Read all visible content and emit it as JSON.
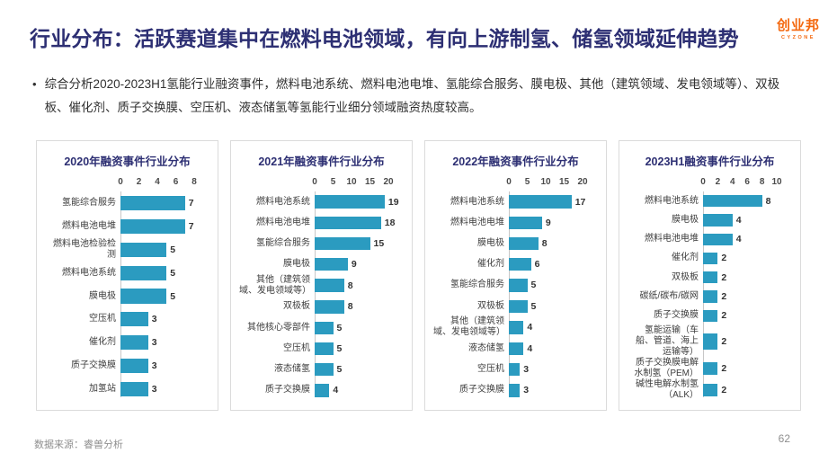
{
  "header": {
    "title": "行业分布：活跃赛道集中在燃料电池领域，有向上游制氢、储氢领域延伸趋势",
    "logo": {
      "text": "创业邦",
      "subtext": "CYZONE",
      "color": "#F4680F"
    }
  },
  "body": {
    "bullet": "综合分析2020-2023H1氢能行业融资事件，燃料电池系统、燃料电池电堆、氢能综合服务、膜电极、其他（建筑领域、发电领域等）、双极板、催化剂、质子交换膜、空压机、液态储氢等氢能行业细分领域融资热度较高。"
  },
  "footer": {
    "source": "数据来源：睿兽分析",
    "page_number": "62"
  },
  "colors": {
    "title_navy": "#2D2F73",
    "bar_teal": "#2B9BC0",
    "card_border": "#DBDBDB",
    "axis_line": "#C7C7C7",
    "muted_gray": "#8F8F8F",
    "logo_orange": "#F4680F"
  },
  "chart_data": [
    {
      "type": "bar",
      "orientation": "horizontal",
      "title": "2020年融资事件行业分布",
      "xlim": [
        0,
        8
      ],
      "ticks": [
        0,
        2,
        4,
        6,
        8
      ],
      "grid": false,
      "value_labels": true,
      "categories": [
        "氢能综合服务",
        "燃料电池电堆",
        "燃料电池检验检测",
        "燃料电池系统",
        "膜电极",
        "空压机",
        "催化剂",
        "质子交换膜",
        "加氢站"
      ],
      "values": [
        7,
        7,
        5,
        5,
        5,
        3,
        3,
        3,
        3
      ]
    },
    {
      "type": "bar",
      "orientation": "horizontal",
      "title": "2021年融资事件行业分布",
      "xlim": [
        0,
        20
      ],
      "ticks": [
        0,
        5,
        10,
        15,
        20
      ],
      "grid": false,
      "value_labels": true,
      "categories": [
        "燃料电池系统",
        "燃料电池电堆",
        "氢能综合服务",
        "膜电极",
        "其他（建筑领域、发电领域等）",
        "双极板",
        "其他核心零部件",
        "空压机",
        "液态储氢",
        "质子交换膜"
      ],
      "values": [
        19,
        18,
        15,
        9,
        8,
        8,
        5,
        5,
        5,
        4
      ]
    },
    {
      "type": "bar",
      "orientation": "horizontal",
      "title": "2022年融资事件行业分布",
      "xlim": [
        0,
        20
      ],
      "ticks": [
        0,
        5,
        10,
        15,
        20
      ],
      "grid": false,
      "value_labels": true,
      "categories": [
        "燃料电池系统",
        "燃料电池电堆",
        "膜电极",
        "催化剂",
        "氢能综合服务",
        "双极板",
        "其他（建筑领域、发电领域等）",
        "液态储氢",
        "空压机",
        "质子交换膜"
      ],
      "values": [
        17,
        9,
        8,
        6,
        5,
        5,
        4,
        4,
        3,
        3
      ]
    },
    {
      "type": "bar",
      "orientation": "horizontal",
      "title": "2023H1融资事件行业分布",
      "xlim": [
        0,
        10
      ],
      "ticks": [
        0,
        2,
        4,
        6,
        8,
        10
      ],
      "grid": false,
      "value_labels": true,
      "categories": [
        "燃料电池系统",
        "膜电极",
        "燃料电池电堆",
        "催化剂",
        "双极板",
        "碳纸/碳布/碳网",
        "质子交换膜",
        "氢能运输（车船、管道、海上运输等）",
        "质子交换膜电解水制氢（PEM）",
        "碱性电解水制氢（ALK）"
      ],
      "values": [
        8,
        4,
        4,
        2,
        2,
        2,
        2,
        2,
        2,
        2
      ]
    }
  ]
}
